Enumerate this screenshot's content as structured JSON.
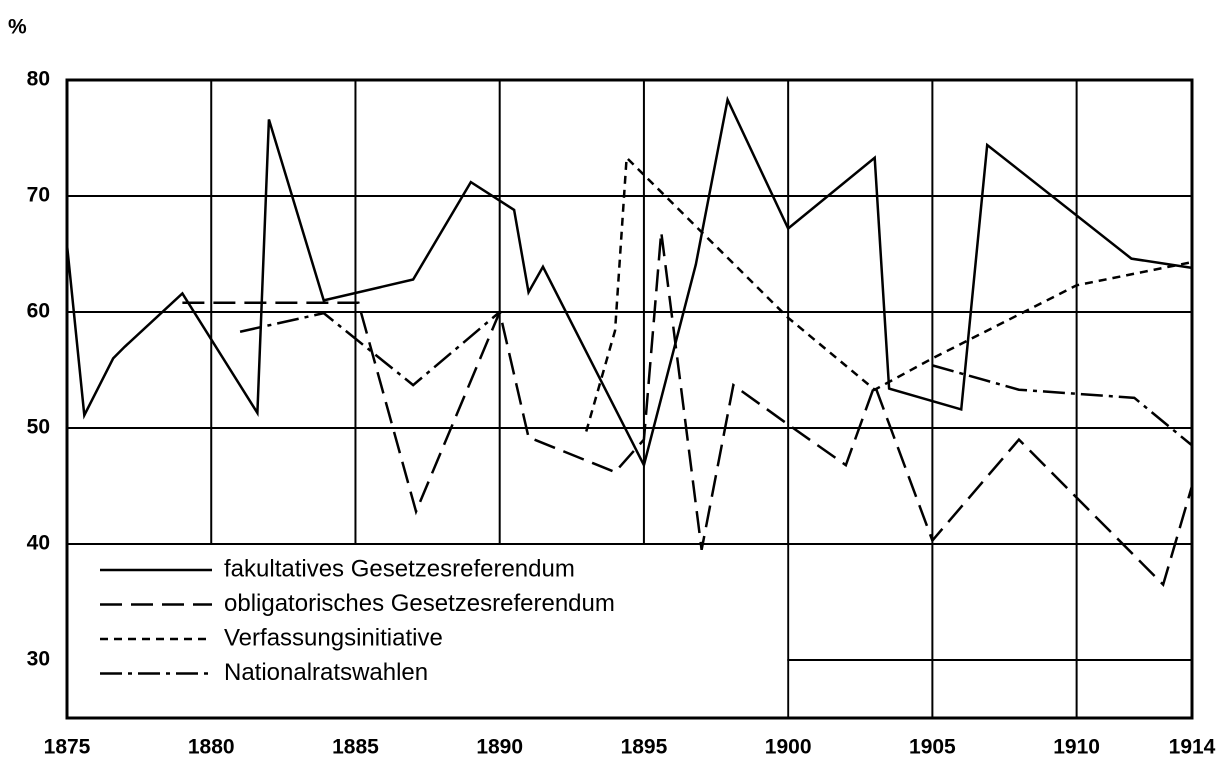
{
  "chart_data": {
    "type": "line",
    "y_label": "%",
    "xlim": [
      1875,
      1914
    ],
    "xticks": [
      1875,
      1880,
      1885,
      1890,
      1895,
      1900,
      1905,
      1910,
      1914
    ],
    "ylim": [
      25,
      80
    ],
    "yticks": [
      30,
      40,
      50,
      60,
      70,
      80
    ],
    "grid": true,
    "legend": "lower left",
    "series": [
      {
        "name": "fakultatives Gesetzesreferendum",
        "color": "#000000",
        "dash": "solid",
        "x": [
          1875,
          1875.6,
          1876.6,
          1877.0,
          1879.0,
          1881.6,
          1882.0,
          1883.9,
          1887.0,
          1889.0,
          1890.5,
          1891.0,
          1891.5,
          1895.0,
          1896.8,
          1897.9,
          1900.0,
          1903.0,
          1903.5,
          1906.0,
          1906.9,
          1911.9,
          1914
        ],
        "values": [
          65.8,
          51.1,
          56.0,
          57.0,
          61.6,
          51.3,
          76.6,
          61.0,
          62.8,
          71.2,
          68.8,
          61.7,
          63.9,
          46.8,
          64.1,
          78.3,
          67.2,
          73.3,
          53.4,
          51.6,
          74.4,
          64.6,
          63.8
        ]
      },
      {
        "name": "obligatorisches Gesetzesreferendum",
        "color": "#000000",
        "dash": "long",
        "x": [
          1879.0,
          1885.1,
          1887.1,
          1890.0,
          1891.0,
          1894.0,
          1895.0,
          1895.6,
          1897.0,
          1898.1,
          1900.0,
          1902.0,
          1903.0,
          1905.0,
          1908.0,
          1913.0,
          1914
        ],
        "values": [
          60.8,
          60.8,
          42.8,
          60.0,
          49.2,
          46.2,
          49.0,
          66.9,
          39.5,
          53.7,
          50.3,
          46.8,
          53.7,
          40.3,
          49.0,
          36.5,
          45.0
        ]
      },
      {
        "name": "Verfassungsinitiative",
        "color": "#000000",
        "dash": "short",
        "x": [
          1893.0,
          1894.0,
          1894.4,
          1900.0,
          1903.0,
          1905.0,
          1910.0,
          1914
        ],
        "values": [
          49.7,
          58.4,
          73.3,
          59.5,
          53.3,
          56.0,
          62.3,
          64.3
        ]
      },
      {
        "name": "Nationalratswahlen",
        "color": "#000000",
        "dash": "dashdot",
        "x": [
          1881.0,
          1883.9,
          1887.0,
          1890.0,
          1897.5,
          1905.0,
          1908.0,
          1912.0,
          1914
        ],
        "values": [
          58.3,
          59.9,
          53.7,
          60.0,
          null,
          55.4,
          53.3,
          52.6,
          48.5
        ]
      }
    ]
  }
}
